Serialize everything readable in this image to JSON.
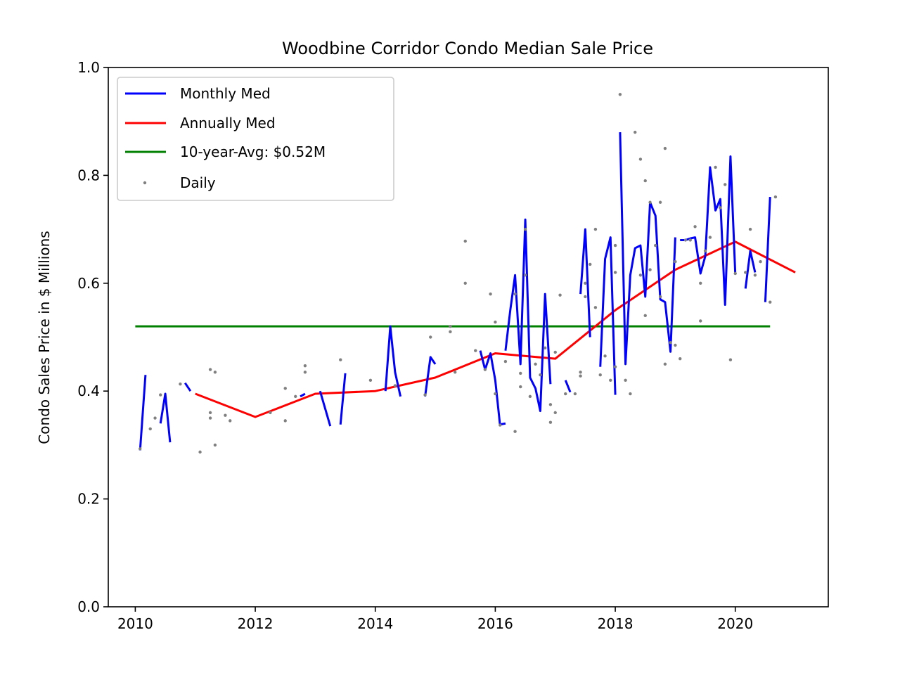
{
  "chart_data": {
    "type": "line",
    "title": "Woodbine Corridor Condo Median Sale Price",
    "xlabel": "",
    "ylabel": "Condo Sales Price in $ Millions",
    "xlim": [
      2009.55,
      2021.55
    ],
    "ylim": [
      0.0,
      1.0
    ],
    "xticks": [
      2010,
      2012,
      2014,
      2016,
      2018,
      2020
    ],
    "xtick_labels": [
      "2010",
      "2012",
      "2014",
      "2016",
      "2018",
      "2020"
    ],
    "yticks": [
      0.0,
      0.2,
      0.4,
      0.6,
      0.8,
      1.0
    ],
    "ytick_labels": [
      "0.0",
      "0.2",
      "0.4",
      "0.6",
      "0.8",
      "1.0"
    ],
    "grid": false,
    "legend_position": "top-left",
    "legend": [
      "Monthly Med",
      "Annually Med",
      "10-year-Avg: $0.52M",
      "Daily"
    ],
    "colors": {
      "monthly": "#0000ff",
      "annual": "#ff0000",
      "average": "#008000",
      "daily": "#808080"
    },
    "series": [
      {
        "name": "Monthly Med",
        "segments": [
          [
            [
              2010.08,
              0.29
            ],
            [
              2010.17,
              0.43
            ]
          ],
          [
            [
              2010.42,
              0.34
            ],
            [
              2010.5,
              0.395
            ],
            [
              2010.58,
              0.305
            ]
          ],
          [
            [
              2010.83,
              0.415
            ],
            [
              2010.92,
              0.4
            ]
          ],
          [
            [
              2012.75,
              0.39
            ],
            [
              2012.83,
              0.395
            ]
          ],
          [
            [
              2013.08,
              0.4
            ],
            [
              2013.25,
              0.335
            ]
          ],
          [
            [
              2013.42,
              0.338
            ],
            [
              2013.5,
              0.433
            ]
          ],
          [
            [
              2014.17,
              0.4
            ],
            [
              2014.25,
              0.52
            ],
            [
              2014.33,
              0.435
            ],
            [
              2014.42,
              0.39
            ]
          ],
          [
            [
              2014.83,
              0.39
            ],
            [
              2014.92,
              0.463
            ],
            [
              2015.0,
              0.45
            ]
          ],
          [
            [
              2015.75,
              0.475
            ],
            [
              2015.83,
              0.44
            ],
            [
              2015.92,
              0.47
            ],
            [
              2016.0,
              0.42
            ],
            [
              2016.08,
              0.336
            ]
          ],
          [
            [
              2016.08,
              0.338
            ],
            [
              2016.17,
              0.34
            ]
          ],
          [
            [
              2016.17,
              0.475
            ],
            [
              2016.25,
              0.55
            ],
            [
              2016.33,
              0.615
            ],
            [
              2016.42,
              0.45
            ],
            [
              2016.5,
              0.718
            ],
            [
              2016.58,
              0.425
            ],
            [
              2016.67,
              0.405
            ],
            [
              2016.75,
              0.363
            ],
            [
              2016.83,
              0.58
            ],
            [
              2016.92,
              0.413
            ]
          ],
          [
            [
              2017.17,
              0.42
            ],
            [
              2017.25,
              0.398
            ]
          ],
          [
            [
              2017.42,
              0.58
            ],
            [
              2017.5,
              0.7
            ],
            [
              2017.58,
              0.5
            ]
          ],
          [
            [
              2017.75,
              0.445
            ],
            [
              2017.83,
              0.645
            ],
            [
              2017.92,
              0.685
            ],
            [
              2018.0,
              0.393
            ]
          ],
          [
            [
              2018.08,
              0.88
            ],
            [
              2018.17,
              0.45
            ],
            [
              2018.25,
              0.615
            ],
            [
              2018.33,
              0.665
            ],
            [
              2018.42,
              0.67
            ],
            [
              2018.5,
              0.575
            ],
            [
              2018.58,
              0.75
            ],
            [
              2018.67,
              0.725
            ],
            [
              2018.75,
              0.57
            ],
            [
              2018.83,
              0.565
            ],
            [
              2018.92,
              0.473
            ],
            [
              2019.0,
              0.685
            ]
          ],
          [
            [
              2019.08,
              0.68
            ],
            [
              2019.17,
              0.68
            ],
            [
              2019.25,
              0.683
            ],
            [
              2019.33,
              0.685
            ],
            [
              2019.42,
              0.618
            ],
            [
              2019.5,
              0.65
            ],
            [
              2019.58,
              0.815
            ],
            [
              2019.67,
              0.735
            ],
            [
              2019.75,
              0.756
            ],
            [
              2019.83,
              0.56
            ],
            [
              2019.92,
              0.835
            ],
            [
              2020.0,
              0.617
            ]
          ],
          [
            [
              2020.17,
              0.59
            ],
            [
              2020.25,
              0.66
            ],
            [
              2020.33,
              0.62
            ]
          ],
          [
            [
              2020.5,
              0.565
            ],
            [
              2020.58,
              0.76
            ]
          ]
        ]
      },
      {
        "name": "Annually Med",
        "x": [
          2011,
          2012,
          2013,
          2014,
          2015,
          2016,
          2017,
          2018,
          2019,
          2020,
          2021
        ],
        "y": [
          0.395,
          0.352,
          0.395,
          0.4,
          0.425,
          0.47,
          0.46,
          0.55,
          0.625,
          0.677,
          0.62
        ]
      },
      {
        "name": "10-year-Avg: $0.52M",
        "x": [
          2010.0,
          2020.58
        ],
        "y": [
          0.52,
          0.52
        ]
      },
      {
        "name": "Daily",
        "points": [
          [
            2010.08,
            0.293
          ],
          [
            2010.25,
            0.33
          ],
          [
            2010.33,
            0.35
          ],
          [
            2010.42,
            0.393
          ],
          [
            2010.75,
            0.413
          ],
          [
            2011.08,
            0.287
          ],
          [
            2011.25,
            0.44
          ],
          [
            2011.25,
            0.36
          ],
          [
            2011.25,
            0.35
          ],
          [
            2011.33,
            0.435
          ],
          [
            2011.33,
            0.3
          ],
          [
            2011.5,
            0.355
          ],
          [
            2011.58,
            0.345
          ],
          [
            2012.25,
            0.36
          ],
          [
            2012.5,
            0.405
          ],
          [
            2012.5,
            0.345
          ],
          [
            2012.67,
            0.39
          ],
          [
            2012.83,
            0.447
          ],
          [
            2012.83,
            0.435
          ],
          [
            2013.42,
            0.458
          ],
          [
            2013.92,
            0.42
          ],
          [
            2014.33,
            0.41
          ],
          [
            2014.83,
            0.393
          ],
          [
            2014.92,
            0.5
          ],
          [
            2015.25,
            0.51
          ],
          [
            2015.25,
            0.52
          ],
          [
            2015.33,
            0.435
          ],
          [
            2015.5,
            0.6
          ],
          [
            2015.5,
            0.678
          ],
          [
            2015.67,
            0.475
          ],
          [
            2015.83,
            0.44
          ],
          [
            2015.92,
            0.58
          ],
          [
            2016.0,
            0.528
          ],
          [
            2016.0,
            0.395
          ],
          [
            2016.08,
            0.337
          ],
          [
            2016.17,
            0.455
          ],
          [
            2016.33,
            0.325
          ],
          [
            2016.33,
            0.58
          ],
          [
            2016.42,
            0.408
          ],
          [
            2016.42,
            0.433
          ],
          [
            2016.5,
            0.7
          ],
          [
            2016.5,
            0.615
          ],
          [
            2016.58,
            0.39
          ],
          [
            2016.67,
            0.45
          ],
          [
            2016.75,
            0.43
          ],
          [
            2016.83,
            0.48
          ],
          [
            2016.92,
            0.375
          ],
          [
            2016.92,
            0.342
          ],
          [
            2017.0,
            0.472
          ],
          [
            2017.0,
            0.36
          ],
          [
            2017.08,
            0.578
          ],
          [
            2017.17,
            0.395
          ],
          [
            2017.33,
            0.395
          ],
          [
            2017.42,
            0.435
          ],
          [
            2017.42,
            0.428
          ],
          [
            2017.5,
            0.6
          ],
          [
            2017.5,
            0.575
          ],
          [
            2017.58,
            0.635
          ],
          [
            2017.67,
            0.7
          ],
          [
            2017.67,
            0.555
          ],
          [
            2017.75,
            0.43
          ],
          [
            2017.83,
            0.465
          ],
          [
            2017.92,
            0.42
          ],
          [
            2018.0,
            0.445
          ],
          [
            2018.0,
            0.62
          ],
          [
            2018.0,
            0.67
          ],
          [
            2018.08,
            0.95
          ],
          [
            2018.17,
            0.42
          ],
          [
            2018.25,
            0.395
          ],
          [
            2018.33,
            0.88
          ],
          [
            2018.42,
            0.615
          ],
          [
            2018.42,
            0.83
          ],
          [
            2018.5,
            0.79
          ],
          [
            2018.5,
            0.54
          ],
          [
            2018.58,
            0.75
          ],
          [
            2018.58,
            0.625
          ],
          [
            2018.67,
            0.67
          ],
          [
            2018.75,
            0.75
          ],
          [
            2018.75,
            0.575
          ],
          [
            2018.83,
            0.85
          ],
          [
            2018.83,
            0.45
          ],
          [
            2018.92,
            0.49
          ],
          [
            2019.0,
            0.64
          ],
          [
            2019.0,
            0.485
          ],
          [
            2019.08,
            0.46
          ],
          [
            2019.17,
            0.68
          ],
          [
            2019.25,
            0.68
          ],
          [
            2019.33,
            0.705
          ],
          [
            2019.42,
            0.53
          ],
          [
            2019.42,
            0.6
          ],
          [
            2019.5,
            0.66
          ],
          [
            2019.58,
            0.685
          ],
          [
            2019.67,
            0.815
          ],
          [
            2019.75,
            0.74
          ],
          [
            2019.83,
            0.783
          ],
          [
            2019.92,
            0.458
          ],
          [
            2020.0,
            0.618
          ],
          [
            2020.17,
            0.62
          ],
          [
            2020.25,
            0.7
          ],
          [
            2020.33,
            0.615
          ],
          [
            2020.42,
            0.64
          ],
          [
            2020.58,
            0.565
          ],
          [
            2020.67,
            0.76
          ]
        ]
      }
    ]
  }
}
